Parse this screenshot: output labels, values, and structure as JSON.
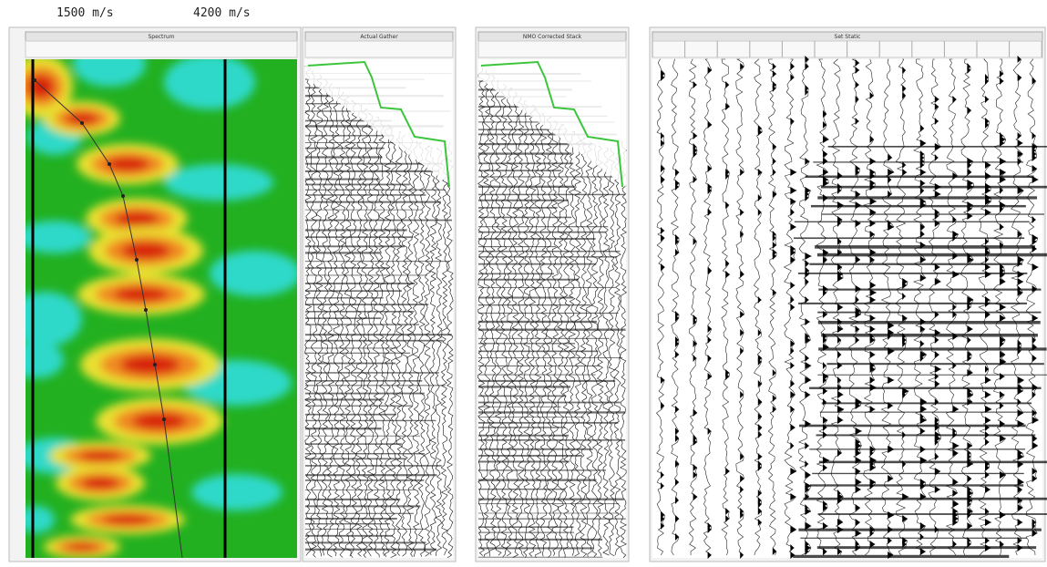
{
  "header": {
    "velocity_min": "1500 m/s",
    "velocity_max": "4200 m/s"
  },
  "panels": [
    {
      "title": "Spectrum"
    },
    {
      "title": "Actual Gather"
    },
    {
      "title": "NMO Corrected Stack"
    },
    {
      "title": "Set Static"
    }
  ]
}
